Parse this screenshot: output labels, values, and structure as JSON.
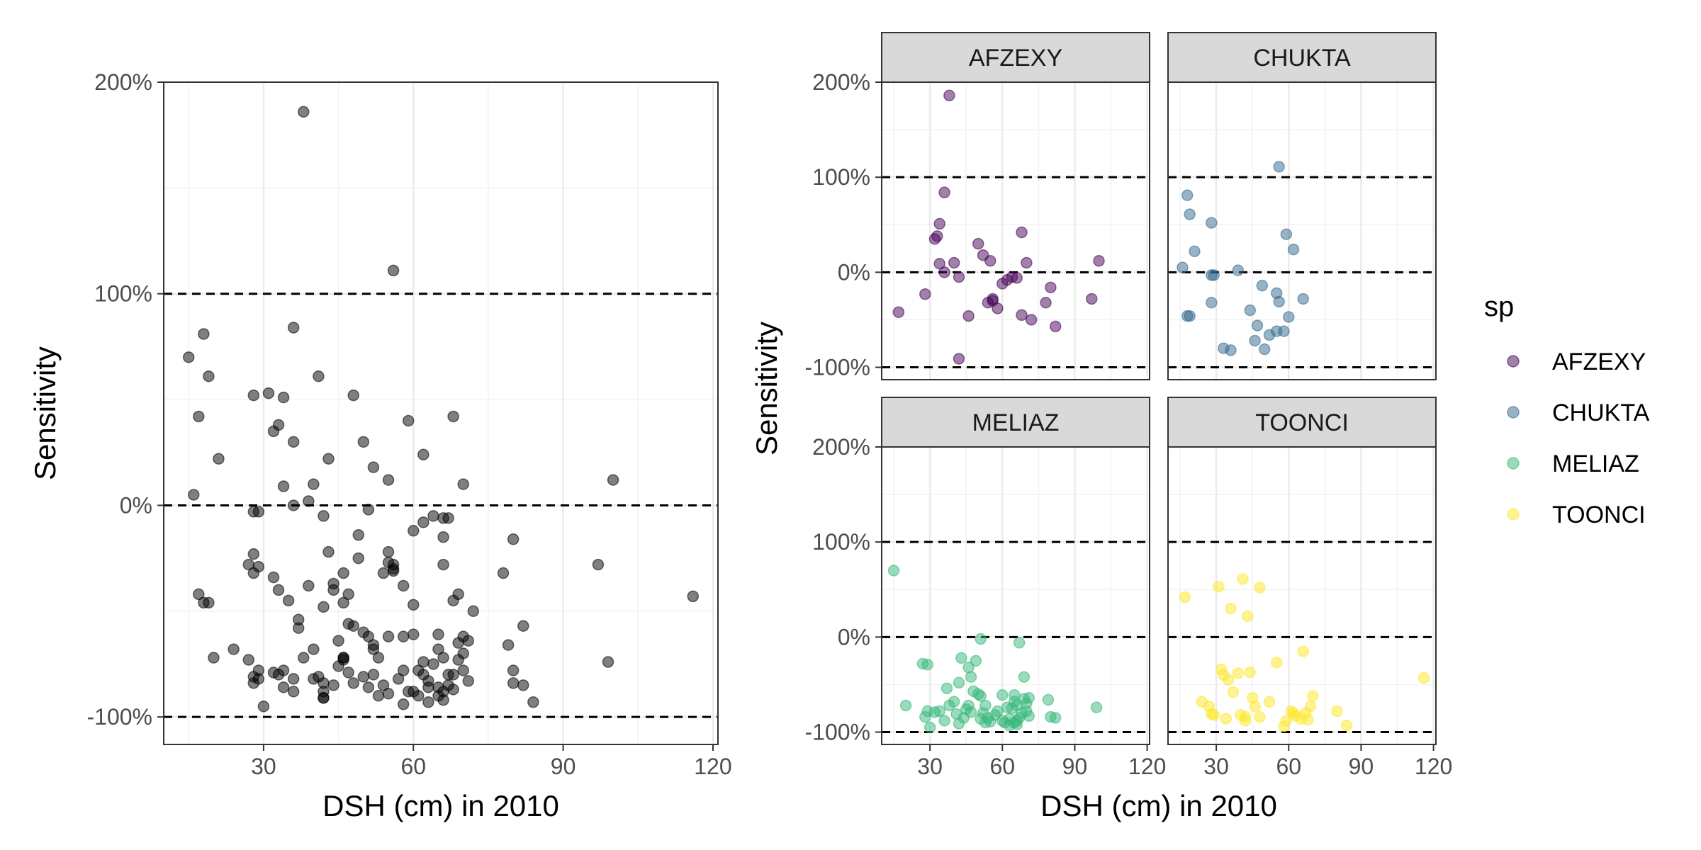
{
  "chart_data": [
    {
      "type": "scatter",
      "xlabel": "DSH (cm) in 2010",
      "ylabel": "Sensitivity",
      "xlim": [
        10,
        121
      ],
      "ylim": [
        -113,
        200
      ],
      "x_ticks": [
        30,
        60,
        90,
        120
      ],
      "x_tick_labels": [
        "30",
        "60",
        "90",
        "120"
      ],
      "y_ticks": [
        -100,
        0,
        100,
        200
      ],
      "y_tick_labels": [
        "-100%",
        "0%",
        "100%",
        "200%"
      ],
      "reference_lines": [
        -100,
        0,
        100
      ],
      "point_color": "#000000",
      "grid": true,
      "points_from": "panels"
    },
    {
      "type": "scatter",
      "facet_by": "sp",
      "xlabel": "DSH (cm) in 2010",
      "ylabel": "Sensitivity",
      "xlim": [
        10,
        121
      ],
      "ylim": [
        -113,
        200
      ],
      "x_ticks": [
        30,
        60,
        90,
        120
      ],
      "x_tick_labels": [
        "30",
        "60",
        "90",
        "120"
      ],
      "y_ticks": [
        -100,
        0,
        100,
        200
      ],
      "y_tick_labels": [
        "-100%",
        "0%",
        "100%",
        "200%"
      ],
      "reference_lines": [
        -100,
        0,
        100
      ],
      "grid": true,
      "legend": {
        "title": "sp",
        "placement": "right"
      },
      "panels": [
        {
          "name": "AFZEXY",
          "color": "#440154",
          "points": [
            [
              38,
              186
            ],
            [
              36,
              84
            ],
            [
              34,
              51
            ],
            [
              32,
              35
            ],
            [
              33,
              38
            ],
            [
              34,
              9
            ],
            [
              36,
              0
            ],
            [
              40,
              10
            ],
            [
              42,
              -5
            ],
            [
              50,
              30
            ],
            [
              52,
              18
            ],
            [
              55,
              12
            ],
            [
              68,
              42
            ],
            [
              70,
              10
            ],
            [
              80,
              -16
            ],
            [
              100,
              12
            ],
            [
              97,
              -28
            ],
            [
              17,
              -42
            ],
            [
              28,
              -23
            ],
            [
              42,
              -91
            ],
            [
              46,
              -46
            ],
            [
              56,
              -30
            ],
            [
              58,
              -38
            ],
            [
              56,
              -28
            ],
            [
              54,
              -32
            ],
            [
              60,
              -12
            ],
            [
              62,
              -8
            ],
            [
              64,
              -5
            ],
            [
              66,
              -6
            ],
            [
              68,
              -45
            ],
            [
              72,
              -50
            ],
            [
              78,
              -32
            ],
            [
              82,
              -57
            ]
          ]
        },
        {
          "name": "CHUKTA",
          "color": "#31688e",
          "points": [
            [
              18,
              81
            ],
            [
              19,
              61
            ],
            [
              21,
              22
            ],
            [
              16,
              5
            ],
            [
              18,
              -46
            ],
            [
              19,
              -46
            ],
            [
              28,
              52
            ],
            [
              28,
              -3
            ],
            [
              29,
              -3
            ],
            [
              28,
              -32
            ],
            [
              33,
              -80
            ],
            [
              36,
              -82
            ],
            [
              39,
              2
            ],
            [
              44,
              -40
            ],
            [
              46,
              -72
            ],
            [
              47,
              -56
            ],
            [
              49,
              -14
            ],
            [
              50,
              -81
            ],
            [
              52,
              -66
            ],
            [
              55,
              -62
            ],
            [
              55,
              -22
            ],
            [
              56,
              -31
            ],
            [
              56,
              111
            ],
            [
              58,
              -62
            ],
            [
              59,
              40
            ],
            [
              60,
              -47
            ],
            [
              62,
              24
            ],
            [
              66,
              -28
            ]
          ]
        },
        {
          "name": "MELIAZ",
          "color": "#35b779",
          "points": [
            [
              15,
              70
            ],
            [
              20,
              -72
            ],
            [
              27,
              -28
            ],
            [
              29,
              -29
            ],
            [
              28,
              -84
            ],
            [
              30,
              -95
            ],
            [
              29,
              -78
            ],
            [
              32,
              -79
            ],
            [
              34,
              -78
            ],
            [
              36,
              -88
            ],
            [
              37,
              -54
            ],
            [
              38,
              -72
            ],
            [
              40,
              -68
            ],
            [
              41,
              -81
            ],
            [
              42,
              -91
            ],
            [
              42,
              -48
            ],
            [
              43,
              -22
            ],
            [
              44,
              -85
            ],
            [
              45,
              -76
            ],
            [
              46,
              -72
            ],
            [
              47,
              -79
            ],
            [
              46,
              -32
            ],
            [
              47,
              -42
            ],
            [
              48,
              -57
            ],
            [
              49,
              -25
            ],
            [
              50,
              -60
            ],
            [
              51,
              -62
            ],
            [
              51,
              -86
            ],
            [
              52,
              -80
            ],
            [
              53,
              -72
            ],
            [
              53,
              -90
            ],
            [
              54,
              -85
            ],
            [
              55,
              -89
            ],
            [
              57,
              -82
            ],
            [
              58,
              -78
            ],
            [
              60,
              -61
            ],
            [
              61,
              -90
            ],
            [
              62,
              -74
            ],
            [
              63,
              -86
            ],
            [
              63,
              -93
            ],
            [
              64,
              -75
            ],
            [
              65,
              -68
            ],
            [
              65,
              -61
            ],
            [
              65,
              -90
            ],
            [
              66,
              -88
            ],
            [
              66,
              -72
            ],
            [
              67,
              -85
            ],
            [
              67,
              -6
            ],
            [
              68,
              -80
            ],
            [
              69,
              -65
            ],
            [
              70,
              -70
            ],
            [
              70,
              -78
            ],
            [
              71,
              -83
            ],
            [
              69,
              -42
            ],
            [
              71,
              -64
            ],
            [
              79,
              -66
            ],
            [
              80,
              -84
            ],
            [
              82,
              -85
            ],
            [
              99,
              -74
            ],
            [
              51,
              -2
            ],
            [
              60,
              -88
            ],
            [
              66,
              -92
            ]
          ]
        },
        {
          "name": "TOONCI",
          "color": "#fde725",
          "points": [
            [
              17,
              42
            ],
            [
              24,
              -68
            ],
            [
              27,
              -73
            ],
            [
              28,
              -81
            ],
            [
              29,
              -82
            ],
            [
              31,
              53
            ],
            [
              32,
              -34
            ],
            [
              33,
              -40
            ],
            [
              34,
              -86
            ],
            [
              35,
              -45
            ],
            [
              36,
              30
            ],
            [
              37,
              -58
            ],
            [
              39,
              -38
            ],
            [
              40,
              -82
            ],
            [
              41,
              61
            ],
            [
              42,
              -88
            ],
            [
              42,
              -84
            ],
            [
              43,
              22
            ],
            [
              44,
              -37
            ],
            [
              45,
              -64
            ],
            [
              46,
              -73
            ],
            [
              48,
              -84
            ],
            [
              48,
              52
            ],
            [
              52,
              -68
            ],
            [
              55,
              -27
            ],
            [
              58,
              -94
            ],
            [
              59,
              -88
            ],
            [
              61,
              -78
            ],
            [
              62,
              -80
            ],
            [
              63,
              -83
            ],
            [
              65,
              -86
            ],
            [
              66,
              -15
            ],
            [
              67,
              -80
            ],
            [
              68,
              -87
            ],
            [
              69,
              -73
            ],
            [
              70,
              -62
            ],
            [
              80,
              -78
            ],
            [
              84,
              -93
            ],
            [
              116,
              -43
            ]
          ]
        }
      ]
    }
  ]
}
